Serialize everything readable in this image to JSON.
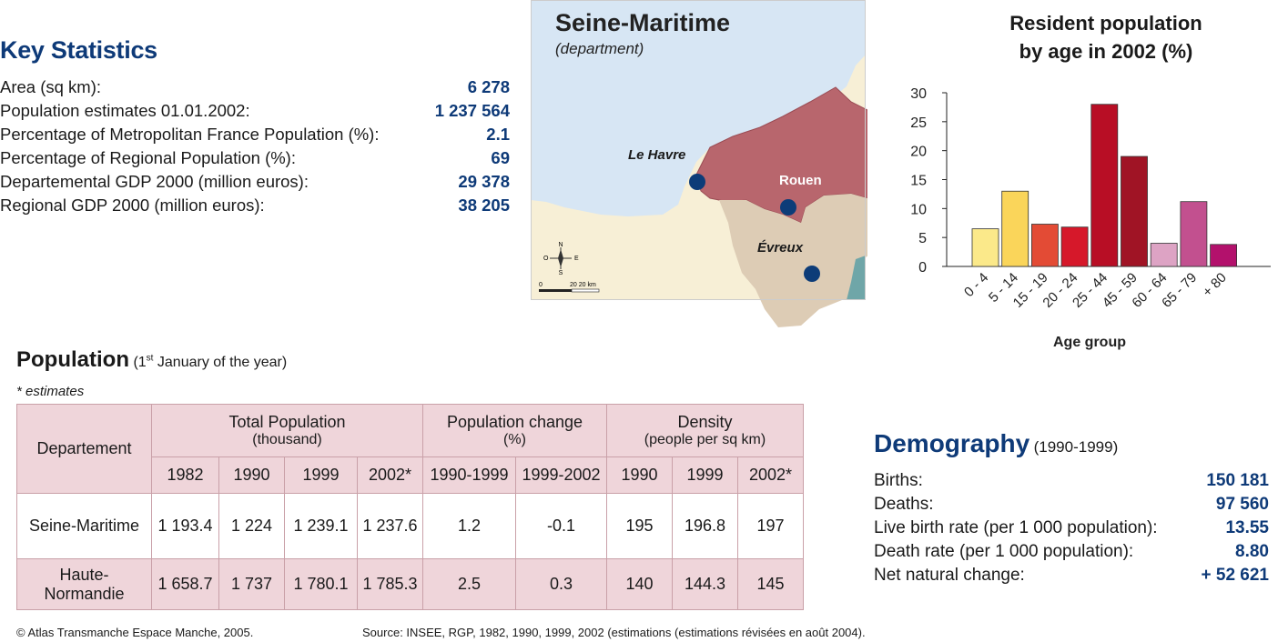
{
  "key_stats": {
    "title": "Key Statistics",
    "rows": [
      {
        "label": "Area (sq km):",
        "value": "6 278"
      },
      {
        "label": "Population estimates 01.01.2002:",
        "value": "1 237 564"
      },
      {
        "label": "Percentage of Metropolitan France Population (%):",
        "value": "2.1"
      },
      {
        "label": "Percentage of Regional Population (%):",
        "value": "69"
      },
      {
        "label": "Departemental GDP 2000 (million euros):",
        "value": "29 378"
      },
      {
        "label": "Regional GDP 2000 (million euros):",
        "value": "38 205"
      }
    ]
  },
  "map": {
    "title": "Seine-Maritime",
    "subtitle": "(department)",
    "cities": {
      "le_havre": "Le Havre",
      "rouen": "Rouen",
      "evreux": "Évreux"
    },
    "compass": {
      "n": "N",
      "s": "S",
      "e": "E",
      "o": "O"
    },
    "scale": {
      "zero": "0",
      "label": "20 20 km"
    },
    "colors": {
      "sea": "#d7e6f4",
      "land": "#f7efd6",
      "seine_maritime": "#b8666d",
      "eure": "#ddccb5",
      "city": "#0d3c78",
      "teal": "#6fa6a8"
    }
  },
  "chart_data": {
    "type": "bar",
    "title": "Resident population by age in 2002 (%)",
    "title_lines": [
      "Resident population",
      "by age in 2002 (%)"
    ],
    "xlabel": "Age group",
    "ylabel": "",
    "categories": [
      "0 - 4",
      "5 - 14",
      "15 - 19",
      "20 - 24",
      "25 - 44",
      "45 - 59",
      "60 - 64",
      "65 - 79",
      "+ 80"
    ],
    "values": [
      6.5,
      13,
      7.3,
      6.8,
      28,
      19,
      4,
      11.2,
      3.8
    ],
    "colors": [
      "#fbe98a",
      "#fad55a",
      "#e34b35",
      "#d6182a",
      "#b80e25",
      "#a01425",
      "#dda3c4",
      "#c2508f",
      "#b3116c"
    ],
    "ylim": [
      0,
      30
    ],
    "yticks": [
      0,
      5,
      10,
      15,
      20,
      25,
      30
    ],
    "grid": false,
    "legend": "none"
  },
  "population": {
    "title": "Population",
    "subtitle_pre": "(1",
    "subtitle_sup": "st",
    "subtitle_post": "January of the year)",
    "note": "* estimates",
    "header": {
      "departement": "Departement",
      "total": "Total Population",
      "total_unit": "(thousand)",
      "change": "Population change",
      "change_unit": "(%)",
      "density": "Density",
      "density_unit": "(people per sq km)",
      "years": [
        "1982",
        "1990",
        "1999",
        "2002*",
        "1990-1999",
        "1999-2002",
        "1990",
        "1999",
        "2002*"
      ]
    },
    "rows": [
      {
        "name": "Seine-Maritime",
        "name2": "",
        "cells": [
          "1 193.4",
          "1 224",
          "1 239.1",
          "1 237.6",
          "1.2",
          "-0.1",
          "195",
          "196.8",
          "197"
        ]
      },
      {
        "name": "Haute-",
        "name2": "Normandie",
        "cells": [
          "1 658.7",
          "1 737",
          "1 780.1",
          "1 785.3",
          "2.5",
          "0.3",
          "140",
          "144.3",
          "145"
        ]
      }
    ]
  },
  "demography": {
    "title": "Demography",
    "period": "(1990-1999)",
    "rows": [
      {
        "label": "Births:",
        "value": "150 181"
      },
      {
        "label": "Deaths:",
        "value": "97 560"
      },
      {
        "label": "Live birth rate (per 1 000 population):",
        "value": "13.55"
      },
      {
        "label": "Death rate (per 1 000 population):",
        "value": "8.80"
      },
      {
        "label": "Net natural change:",
        "value": "+ 52 621"
      }
    ]
  },
  "footer": {
    "copyright": "© Atlas Transmanche Espace Manche, 2005.",
    "source": "Source: INSEE, RGP, 1982, 1990, 1999, 2002 (estimations (estimations révisées en août 2004)."
  }
}
